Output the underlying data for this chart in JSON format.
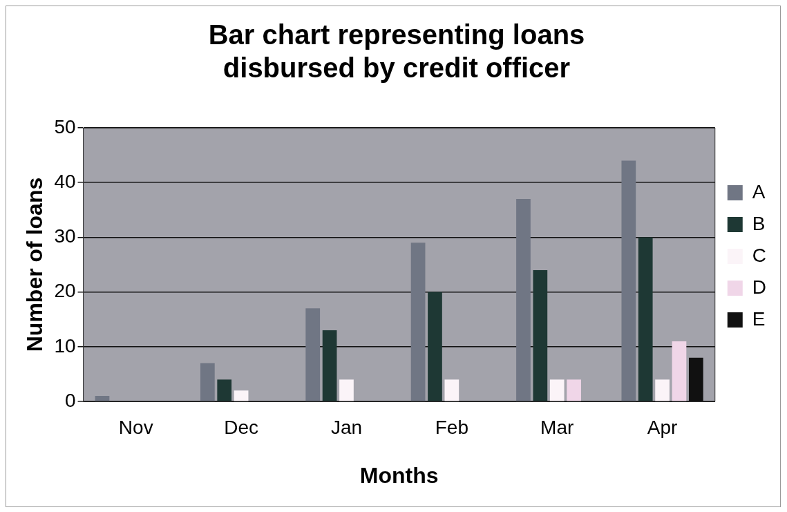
{
  "chart_data": {
    "type": "bar",
    "title": [
      "Bar chart representing loans",
      "disbursed by credit officer"
    ],
    "xlabel": "Months",
    "ylabel": "Number of loans",
    "categories": [
      "Nov",
      "Dec",
      "Jan",
      "Feb",
      "Mar",
      "Apr"
    ],
    "series": [
      {
        "name": "A",
        "color": "#707684",
        "values": [
          1,
          7,
          17,
          29,
          37,
          44
        ]
      },
      {
        "name": "B",
        "color": "#1e3834",
        "values": [
          0,
          4,
          13,
          20,
          24,
          30
        ]
      },
      {
        "name": "C",
        "color": "#fbf4f8",
        "values": [
          0,
          2,
          4,
          4,
          4,
          4
        ]
      },
      {
        "name": "D",
        "color": "#f0d6e8",
        "values": [
          0,
          0,
          0,
          0,
          4,
          11
        ]
      },
      {
        "name": "E",
        "color": "#111111",
        "values": [
          0,
          0,
          0,
          0,
          0,
          8
        ]
      }
    ],
    "ylim": [
      0,
      50
    ],
    "yticks": [
      0,
      10,
      20,
      30,
      40,
      50
    ],
    "grid": "y",
    "legend": "right"
  }
}
